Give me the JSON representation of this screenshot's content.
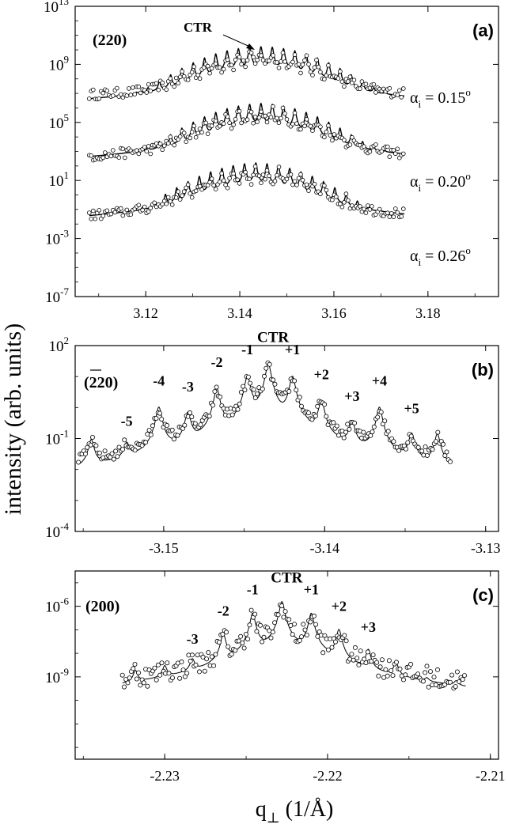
{
  "ylabel": "intensity (arb. units)",
  "xlabel": "q⊥ (1/Å)",
  "chart_data": [
    {
      "type": "scatter",
      "panel": "(a)",
      "reflection": "(220)",
      "annotation": "CTR",
      "y_scale": "log",
      "ylim_exp": [
        -7,
        13
      ],
      "yticks": [
        {
          "label": "10",
          "exp": "13",
          "v": 13
        },
        {
          "label": "10",
          "exp": "9",
          "v": 9
        },
        {
          "label": "10",
          "exp": "5",
          "v": 5
        },
        {
          "label": "10",
          "exp": "1",
          "v": 1
        },
        {
          "label": "10",
          "exp": "-3",
          "v": -3
        },
        {
          "label": "10",
          "exp": "-7",
          "v": -7
        }
      ],
      "xlim": [
        3.105,
        3.195
      ],
      "xticks": [
        "3.12",
        "3.14",
        "3.16",
        "3.18"
      ],
      "xtick_values": [
        3.12,
        3.14,
        3.16,
        3.18
      ],
      "grid": false,
      "series": [
        {
          "name": "αi = 0.15°",
          "label_main": "α",
          "label_sub": "i",
          "label_rest": " = 0.15",
          "label_sup": "o",
          "x_range": [
            3.108,
            3.175
          ],
          "peak_center": 3.1445,
          "peak_spacing": 0.0024,
          "peak_log_max": 10.2,
          "baseline_log": 6.6,
          "min_log": 5.2
        },
        {
          "name": "αi = 0.20°",
          "label_main": "α",
          "label_sub": "i",
          "label_rest": " = 0.20",
          "label_sup": "o",
          "x_range": [
            3.108,
            3.175
          ],
          "peak_center": 3.1445,
          "peak_spacing": 0.0024,
          "peak_log_max": 6.3,
          "baseline_log": 0.5,
          "min_log": -0.2
        },
        {
          "name": "αi = 0.26°",
          "label_main": "α",
          "label_sub": "i",
          "label_rest": " = 0.26",
          "label_sup": "o",
          "x_range": [
            3.108,
            3.175
          ],
          "peak_center": 3.1434,
          "peak_spacing": 0.0024,
          "peak_log_max": 2.2,
          "baseline_log": -4.8,
          "min_log": -5.6
        }
      ]
    },
    {
      "type": "scatter",
      "panel": "(b)",
      "reflection": "(220)",
      "reflection_bar": true,
      "y_scale": "log",
      "ylim_exp": [
        -4,
        2
      ],
      "yticks": [
        {
          "label": "10",
          "exp": "2",
          "v": 2
        },
        {
          "label": "10",
          "exp": "-1",
          "v": -1
        },
        {
          "label": "10",
          "exp": "-4",
          "v": -4
        }
      ],
      "xlim": [
        -3.1555,
        -3.1292
      ],
      "xticks": [
        "-3.15",
        "-3.14",
        "-3.13"
      ],
      "xtick_values": [
        -3.15,
        -3.14,
        -3.13
      ],
      "grid": false,
      "peaks": {
        "labels": [
          "-5",
          "-4",
          "-3",
          "-2",
          "-1",
          "CTR",
          "+1",
          "+2",
          "+3",
          "+4",
          "+5"
        ],
        "x": [
          -3.1523,
          -3.1503,
          -3.1485,
          -3.1467,
          -3.1448,
          -3.1435,
          -3.142,
          -3.1402,
          -3.1383,
          -3.1366,
          -3.1346
        ],
        "log_y": [
          -1.3,
          0.0,
          -0.2,
          0.6,
          1.0,
          1.4,
          1.0,
          0.2,
          -0.5,
          0.0,
          -0.9
        ]
      },
      "extra_peaks": {
        "x": [
          -3.1545,
          -3.133
        ],
        "log_y": [
          -1.1,
          -0.9
        ]
      },
      "baseline_log": -3.3
    },
    {
      "type": "scatter",
      "panel": "(c)",
      "reflection": "(200)",
      "annotation": "CTR",
      "y_scale": "log",
      "ylim_exp": [
        -12.5,
        -4.5
      ],
      "yticks": [
        {
          "label": "10",
          "exp": "-6",
          "v": -6
        },
        {
          "label": "10",
          "exp": "-9",
          "v": -9
        }
      ],
      "xlim": [
        -2.2355,
        -2.2095
      ],
      "xticks": [
        "-2.23",
        "-2.22",
        "-2.21"
      ],
      "xtick_values": [
        -2.23,
        -2.22,
        -2.21
      ],
      "grid": false,
      "peaks": {
        "labels": [
          "-3",
          "-2",
          "-1",
          "CTR",
          "+1",
          "+2",
          "+3"
        ],
        "x": [
          -2.2283,
          -2.2264,
          -2.2246,
          -2.2228,
          -2.221,
          -2.2193,
          -2.2175
        ],
        "log_y": [
          -8.4,
          -7.2,
          -6.3,
          -5.8,
          -6.3,
          -7.0,
          -7.9
        ]
      },
      "extra_peaks": {
        "x": [
          -2.2318,
          -2.23,
          -2.2158,
          -2.2139,
          -2.2121
        ],
        "log_y": [
          -8.9,
          -8.7,
          -8.5,
          -9.6,
          -9.6
        ]
      },
      "baseline_log": -11.4
    }
  ]
}
